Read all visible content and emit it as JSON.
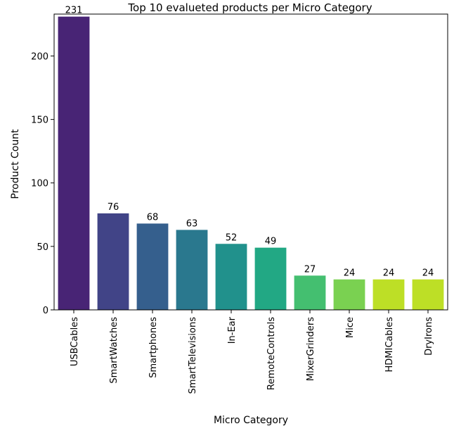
{
  "chart_data": {
    "type": "bar",
    "title": "Top 10 evalueted products per Micro Category",
    "xlabel": "Micro Category",
    "ylabel": "Product Count",
    "categories": [
      "USBCables",
      "SmartWatches",
      "Smartphones",
      "SmartTelevisions",
      "In-Ear",
      "RemoteControls",
      "MixerGrinders",
      "Mice",
      "HDMICables",
      "DryIrons"
    ],
    "values": [
      231,
      76,
      68,
      63,
      52,
      49,
      27,
      24,
      24,
      24
    ],
    "data_labels": [
      "231",
      "76",
      "68",
      "63",
      "52",
      "49",
      "27",
      "24",
      "24",
      "24"
    ],
    "yticks": [
      0,
      50,
      100,
      150,
      200
    ],
    "ylim": [
      0,
      233
    ],
    "grid": false,
    "legend": "none",
    "colors": [
      "#482475",
      "#414487",
      "#355f8d",
      "#2a788e",
      "#21918c",
      "#22a884",
      "#44bf70",
      "#7ad151",
      "#bddf26",
      "#bddf26"
    ]
  }
}
